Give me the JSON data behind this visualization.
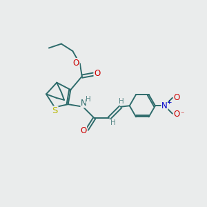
{
  "bg_color": "#eaecec",
  "bond_color": "#2d6b6b",
  "S_color": "#b8b800",
  "O_color": "#cc0000",
  "N_color": "#0000cc",
  "H_color": "#5a8a8a",
  "line_width": 1.4,
  "font_size": 8.5,
  "xlim": [
    0,
    10
  ],
  "ylim": [
    0,
    10
  ]
}
